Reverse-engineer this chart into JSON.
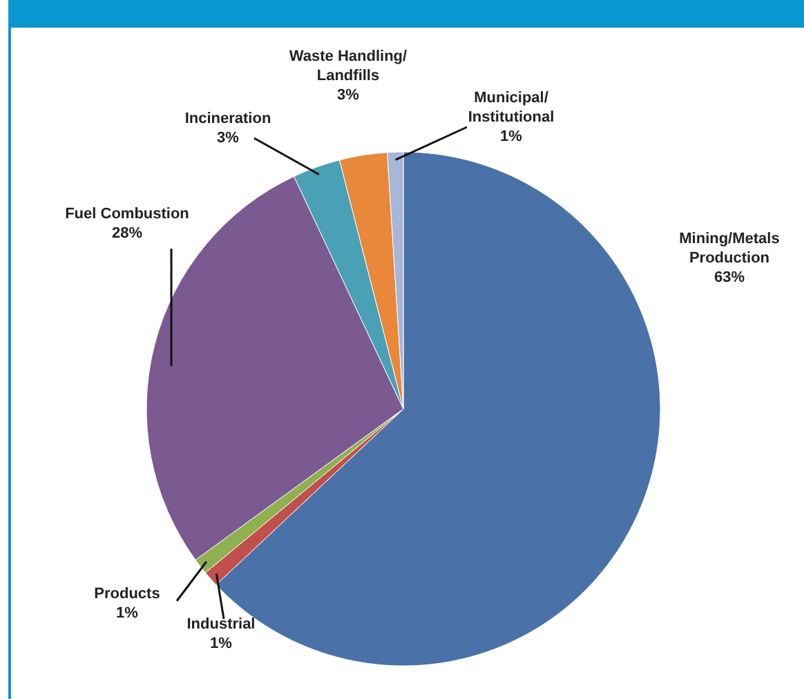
{
  "chart_data": {
    "type": "pie",
    "categories": [
      "Mining/Metals Production",
      "Industrial",
      "Products",
      "Fuel Combustion",
      "Incineration",
      "Waste Handling/ Landfills",
      "Municipal/ Institutional"
    ],
    "values": [
      63,
      1,
      1,
      28,
      3,
      3,
      1
    ],
    "colors": [
      "#4a72a8",
      "#c0504d",
      "#8fb04f",
      "#7b5a92",
      "#4aa0b4",
      "#e9873a",
      "#a6b7d8"
    ],
    "value_labels": [
      "63%",
      "1%",
      "1%",
      "28%",
      "3%",
      "3%",
      "1%"
    ]
  }
}
